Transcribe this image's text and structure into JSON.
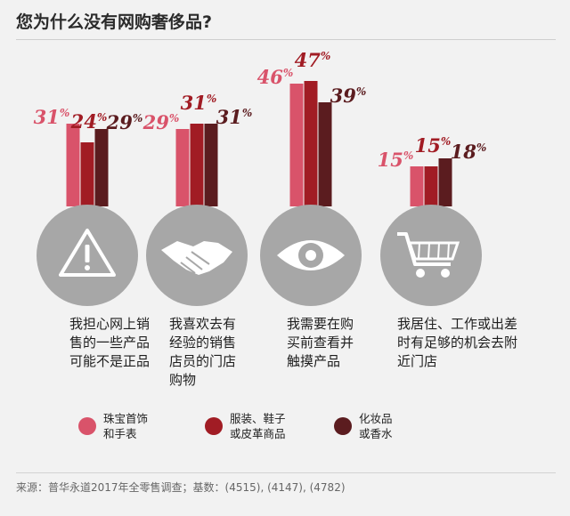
{
  "title": "您为什么没有网购奢侈品?",
  "colors": {
    "jewelry": "#d9536a",
    "apparel": "#a11c24",
    "cosmetics": "#5b1c1f",
    "circle": "#a7a7a7"
  },
  "chart_data": {
    "type": "bar",
    "title": "您为什么没有网购奢侈品?",
    "categories": [
      "我担心网上销售的一些产品可能不是正品",
      "我喜欢去有经验的销售店员的门店购物",
      "我需要在购买前查看并触摸产品",
      "我居住、工作或出差时有足够的机会去附近门店"
    ],
    "series": [
      {
        "name": "珠宝首饰和手表",
        "values": [
          31,
          29,
          46,
          15
        ]
      },
      {
        "name": "服装、鞋子或皮革商品",
        "values": [
          24,
          31,
          47,
          15
        ]
      },
      {
        "name": "化妆品或香水",
        "values": [
          29,
          31,
          39,
          18
        ]
      }
    ],
    "unit": "%",
    "legend": "bottom",
    "grid": false
  },
  "groups": [
    {
      "icon": "warning-icon",
      "lines": [
        "我担心网上销",
        "售的一些产品",
        "可能不是正品"
      ]
    },
    {
      "icon": "handshake-icon",
      "lines": [
        "我喜欢去有",
        "经验的销售",
        "店员的门店",
        "购物"
      ]
    },
    {
      "icon": "eye-icon",
      "lines": [
        "我需要在购",
        "买前查看并",
        "触摸产品"
      ]
    },
    {
      "icon": "shopping-cart-icon",
      "lines": [
        "我居住、工作或出差",
        "时有足够的机会去附",
        "近门店"
      ]
    }
  ],
  "legend": [
    {
      "line1": "珠宝首饰",
      "line2": "和手表"
    },
    {
      "line1": "服装、鞋子",
      "line2": "或皮革商品"
    },
    {
      "line1": "化妆品",
      "line2": "或香水"
    }
  ],
  "source": "来源：普华永道2017年全零售调查；基数：(4515), (4147), (4782)"
}
